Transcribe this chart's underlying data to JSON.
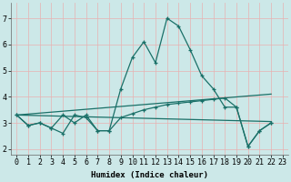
{
  "xlabel": "Humidex (Indice chaleur)",
  "xlim": [
    -0.5,
    23.5
  ],
  "ylim": [
    1.8,
    7.6
  ],
  "yticks": [
    2,
    3,
    4,
    5,
    6,
    7
  ],
  "xticks": [
    0,
    1,
    2,
    3,
    4,
    5,
    6,
    7,
    8,
    9,
    10,
    11,
    12,
    13,
    14,
    15,
    16,
    17,
    18,
    19,
    20,
    21,
    22,
    23
  ],
  "bg_color": "#cce8e8",
  "grid_color": "#e8b0b0",
  "line_color": "#1a7068",
  "line1_x": [
    0,
    1,
    2,
    3,
    4,
    5,
    6,
    7,
    8,
    9,
    10,
    11,
    12,
    13,
    14,
    15,
    16,
    17,
    18,
    19,
    20,
    21,
    22
  ],
  "line1_y": [
    3.3,
    2.9,
    3.0,
    2.8,
    2.6,
    3.3,
    3.2,
    2.7,
    2.7,
    4.3,
    5.5,
    6.1,
    5.3,
    7.0,
    6.7,
    5.8,
    4.8,
    4.3,
    3.6,
    3.6,
    2.1,
    2.7,
    3.0
  ],
  "line2_x": [
    0,
    1,
    2,
    3,
    4,
    5,
    6,
    7,
    8,
    9,
    10,
    11,
    12,
    13,
    14,
    15,
    16,
    17,
    18,
    19,
    20,
    21,
    22
  ],
  "line2_y": [
    3.3,
    2.9,
    3.0,
    2.8,
    3.3,
    3.0,
    3.3,
    2.7,
    2.7,
    3.2,
    3.35,
    3.5,
    3.6,
    3.7,
    3.75,
    3.8,
    3.85,
    3.9,
    3.95,
    3.6,
    2.1,
    2.7,
    3.0
  ],
  "line3_x": [
    0,
    22
  ],
  "line3_y": [
    3.3,
    4.1
  ],
  "line4_x": [
    0,
    22
  ],
  "line4_y": [
    3.3,
    3.05
  ],
  "xlabel_fontsize": 6.5,
  "tick_fontsize": 6
}
